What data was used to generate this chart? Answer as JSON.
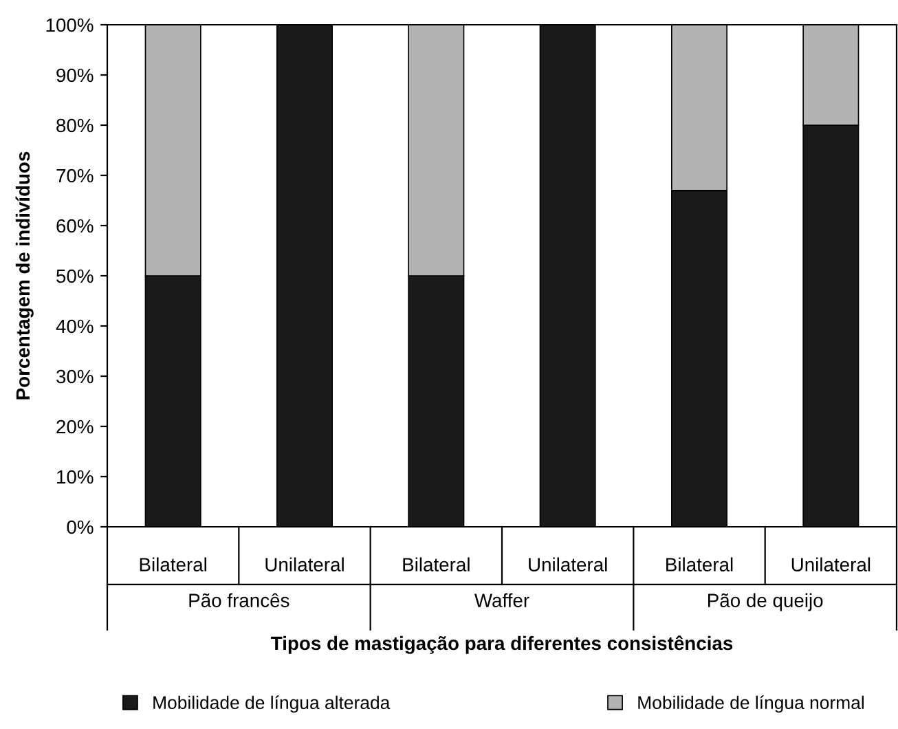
{
  "chart_data": {
    "type": "bar",
    "stacked": true,
    "xlabel": "Tipos de mastigação para diferentes consistências",
    "ylabel": "Porcentagem de indivíduos",
    "categories": [
      "Bilateral",
      "Unilateral",
      "Bilateral",
      "Unilateral",
      "Bilateral",
      "Unilateral"
    ],
    "annotations": [
      "Pão francês",
      "Waffer",
      "Pão de queijo"
    ],
    "series": [
      {
        "name": "Mobilidade de língua alterada",
        "color": "#1a1a1a",
        "values": [
          50,
          100,
          50,
          100,
          67,
          80
        ]
      },
      {
        "name": "Mobilidade de língua normal",
        "color": "#b3b3b3",
        "values": [
          50,
          0,
          50,
          0,
          33,
          20
        ]
      }
    ],
    "ylim": [
      0,
      100
    ],
    "yticks": [
      {
        "value": 0,
        "label": "0%"
      },
      {
        "value": 10,
        "label": "10%"
      },
      {
        "value": 20,
        "label": "20%"
      },
      {
        "value": 30,
        "label": "30%"
      },
      {
        "value": 40,
        "label": "40%"
      },
      {
        "value": 50,
        "label": "50%"
      },
      {
        "value": 60,
        "label": "60%"
      },
      {
        "value": 70,
        "label": "70%"
      },
      {
        "value": 80,
        "label": "80%"
      },
      {
        "value": 90,
        "label": "90%"
      },
      {
        "value": 100,
        "label": "100%"
      }
    ],
    "grid": false,
    "legend": "bottom"
  }
}
